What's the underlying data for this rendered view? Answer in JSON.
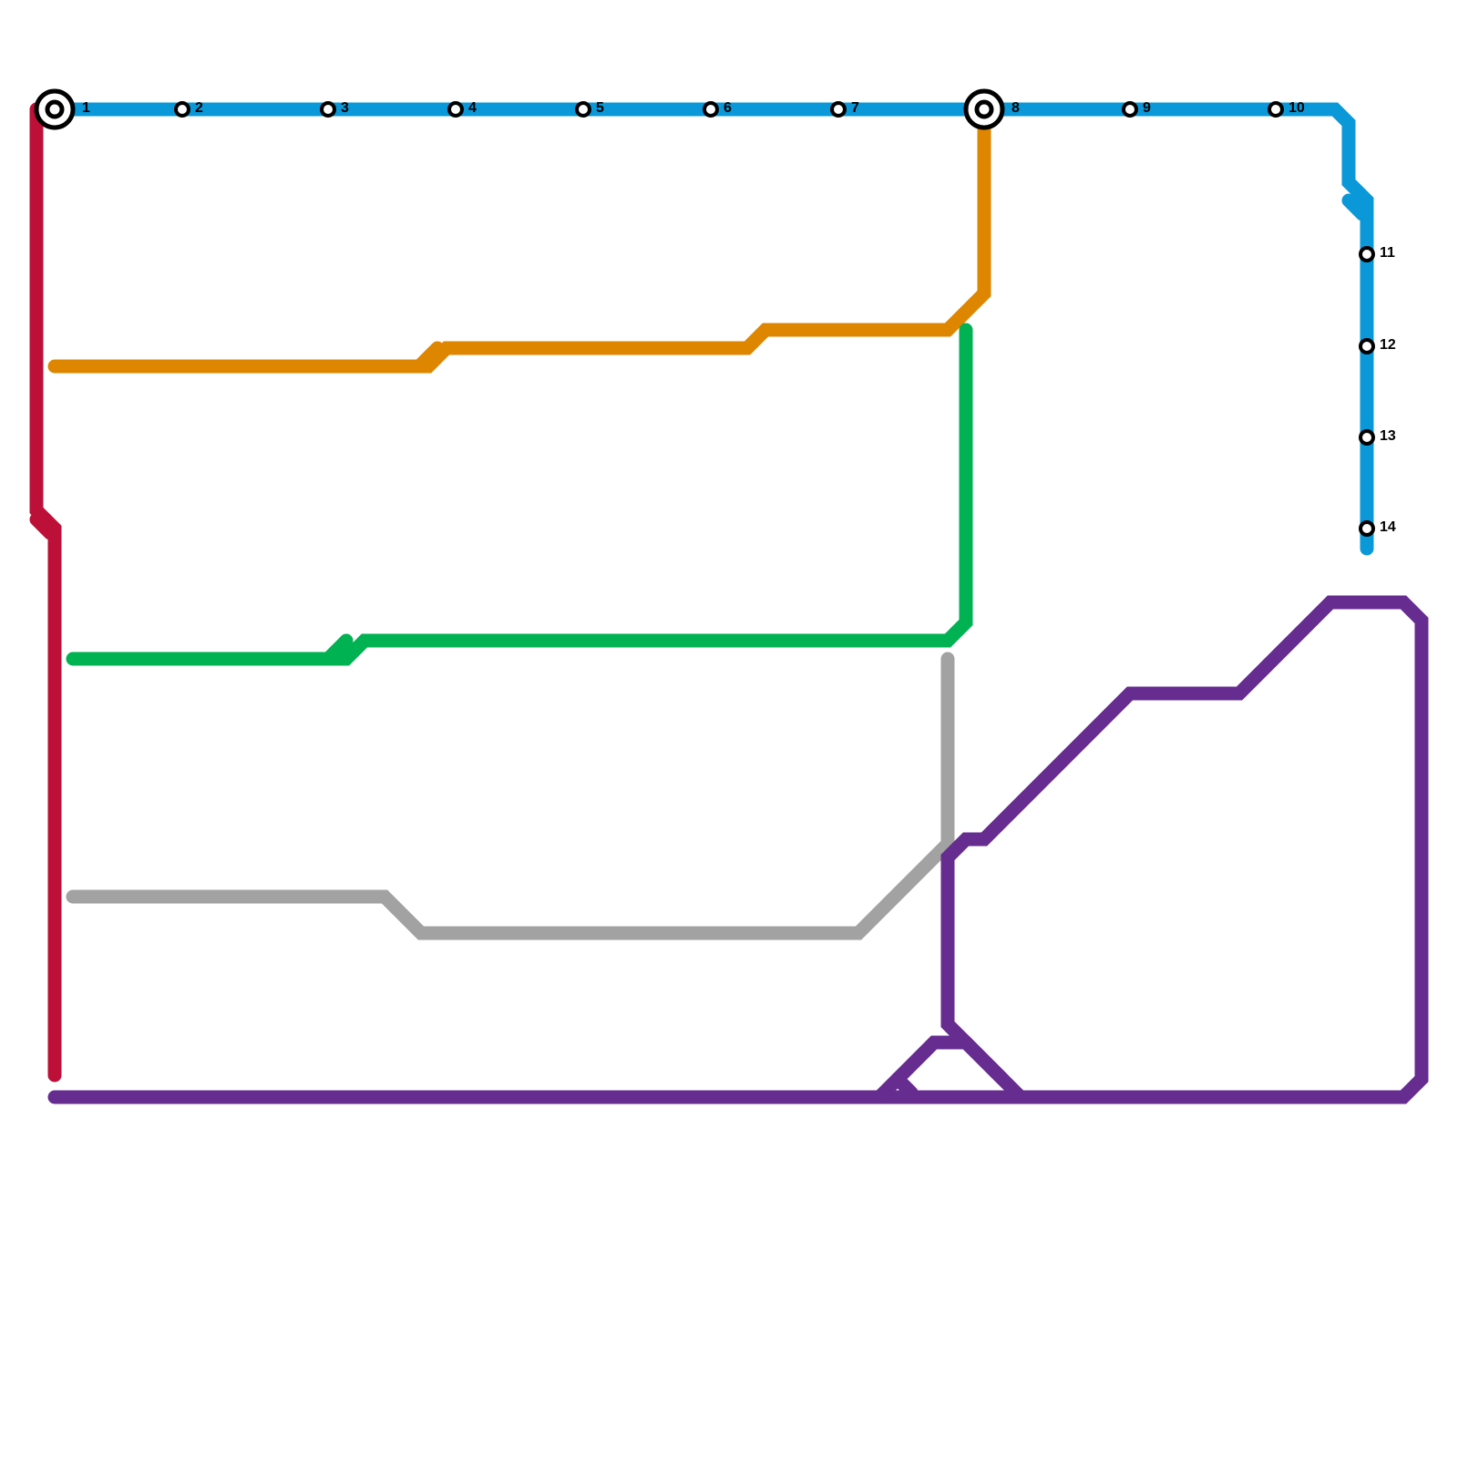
{
  "stations": [
    {
      "label": "1"
    },
    {
      "label": "2"
    },
    {
      "label": "3"
    },
    {
      "label": "4"
    },
    {
      "label": "5"
    },
    {
      "label": "6"
    },
    {
      "label": "7"
    },
    {
      "label": "8"
    },
    {
      "label": "9"
    },
    {
      "label": "10"
    },
    {
      "label": "11"
    },
    {
      "label": "12"
    },
    {
      "label": "13"
    },
    {
      "label": "14"
    }
  ]
}
